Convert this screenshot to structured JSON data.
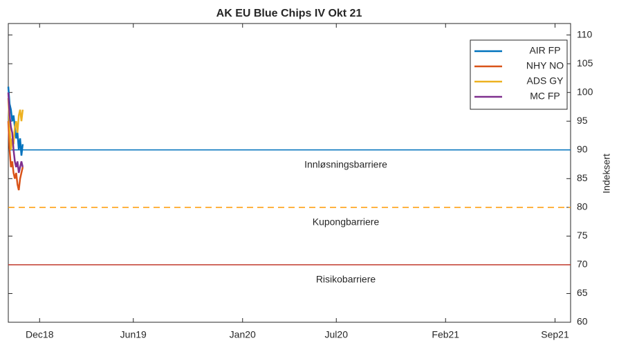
{
  "chart_data": {
    "type": "line",
    "title": "AK EU Blue Chips IV Okt 21",
    "ylabel": "Indeksert",
    "x": [
      2018.75,
      2018.757,
      2018.764,
      2018.771,
      2018.778,
      2018.785,
      2018.792,
      2018.799,
      2018.806,
      2018.813,
      2018.82,
      2018.827
    ],
    "series": [
      {
        "name": "AIR FP",
        "color": "#0072bd",
        "values": [
          101,
          98,
          97,
          95,
          96,
          94,
          92,
          93,
          90,
          92,
          89,
          91
        ]
      },
      {
        "name": "NHY NO",
        "color": "#d95319",
        "values": [
          95,
          90,
          87,
          88,
          86,
          85,
          86,
          84,
          83,
          85,
          86,
          87
        ]
      },
      {
        "name": "ADS GY",
        "color": "#edb120",
        "values": [
          99,
          94,
          90,
          92,
          91,
          94,
          95,
          93,
          96,
          97,
          95,
          97
        ]
      },
      {
        "name": "MC FP",
        "color": "#7e2f8e",
        "values": [
          100,
          96,
          94,
          93,
          90,
          88,
          87,
          88,
          86,
          87,
          88,
          87
        ]
      }
    ],
    "barriers": [
      {
        "label": "Innløsningsbarriere",
        "value": 90,
        "color": "#0072bd",
        "dashed": false
      },
      {
        "label": "Kupongbarriere",
        "value": 80,
        "color": "#ff9900",
        "dashed": true
      },
      {
        "label": "Risikobarriere",
        "value": 70,
        "color": "#c0392b",
        "dashed": false
      }
    ],
    "xlim": [
      2018.75,
      2021.75
    ],
    "xticks": [
      {
        "value": 2018.917,
        "label": "Dec18"
      },
      {
        "value": 2019.417,
        "label": "Jun19"
      },
      {
        "value": 2020.0,
        "label": "Jan20"
      },
      {
        "value": 2020.5,
        "label": "Jul20"
      },
      {
        "value": 2021.083,
        "label": "Feb21"
      },
      {
        "value": 2021.667,
        "label": "Sep21"
      }
    ],
    "ylim": [
      60,
      112
    ],
    "yticks": [
      60,
      65,
      70,
      75,
      80,
      85,
      90,
      95,
      100,
      105,
      110
    ],
    "legend": "upper right"
  }
}
